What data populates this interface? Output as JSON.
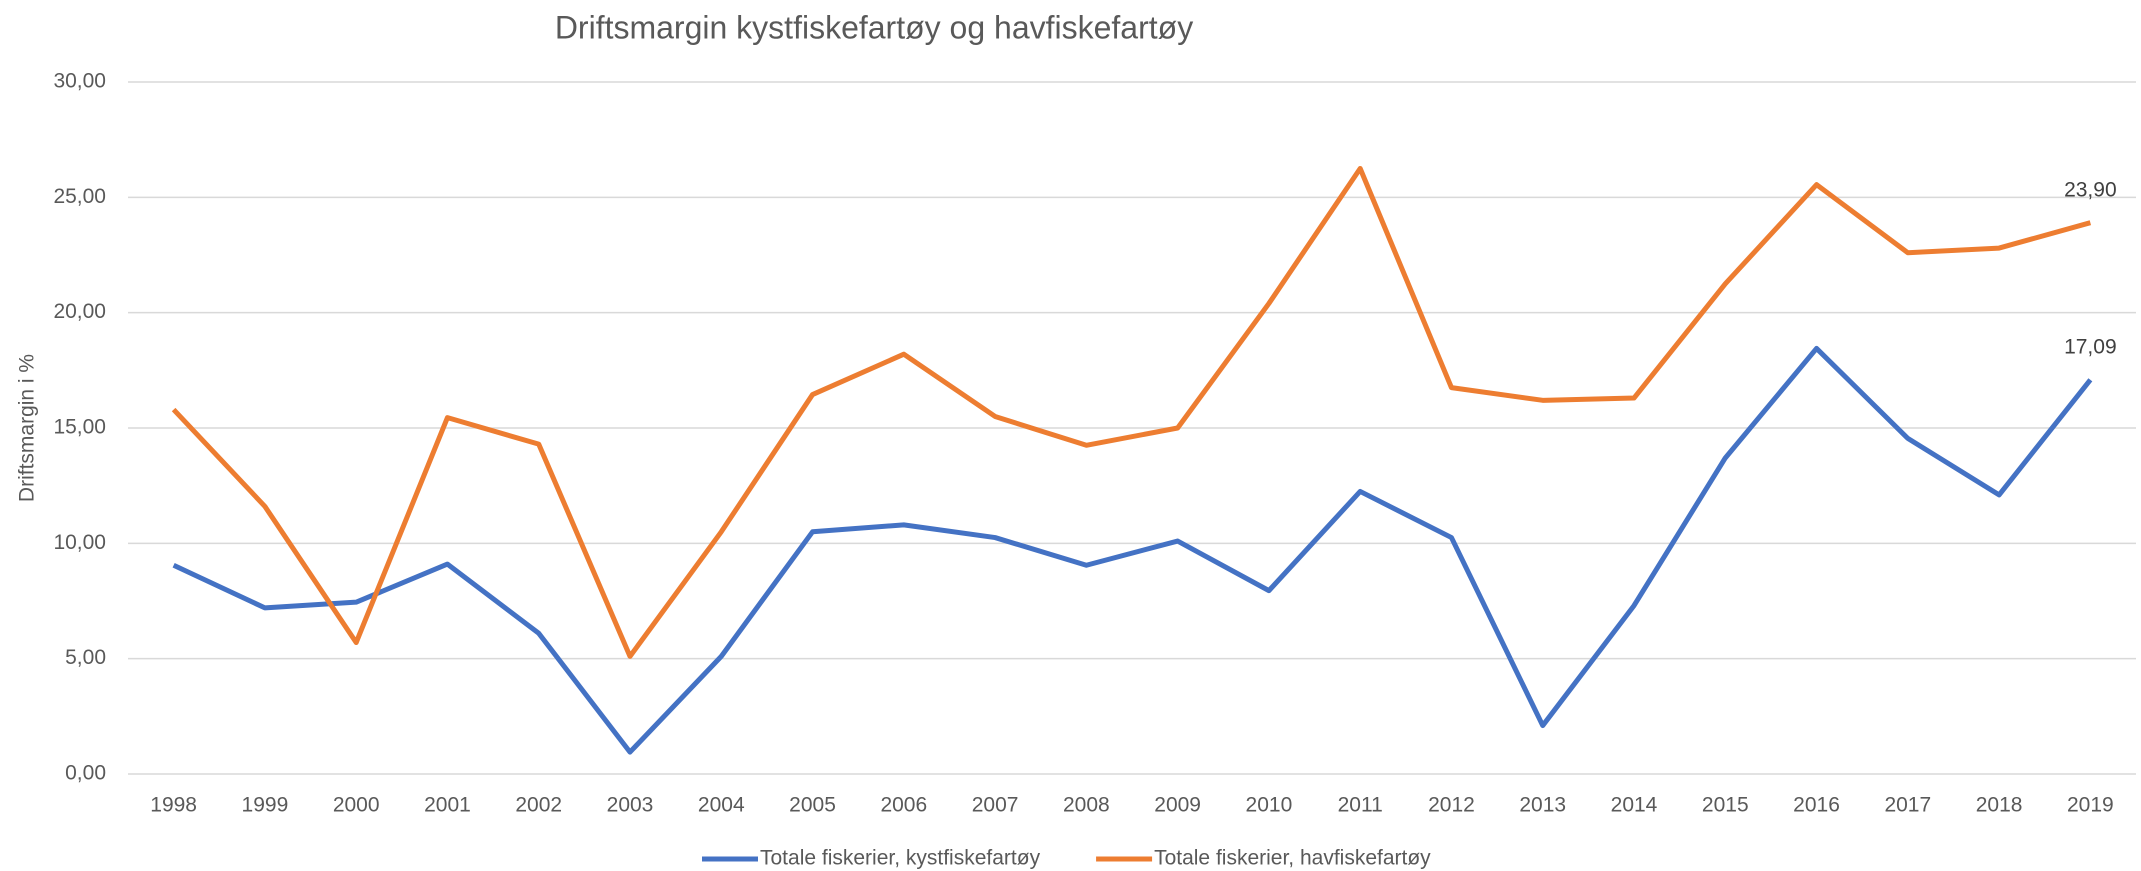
{
  "chart_data": {
    "type": "line",
    "title": "Driftsmargin kystfiskefartøy og havfiskefartøy",
    "y_label": "Driftsmargin i %",
    "categories": [
      "1998",
      "1999",
      "2000",
      "2001",
      "2002",
      "2003",
      "2004",
      "2005",
      "2006",
      "2007",
      "2008",
      "2009",
      "2010",
      "2011",
      "2012",
      "2013",
      "2014",
      "2015",
      "2016",
      "2017",
      "2018",
      "2019"
    ],
    "series": [
      {
        "name": "Totale fiskerier, kystfiskefartøy",
        "color": "#4472c4",
        "values": [
          9.05,
          7.2,
          7.45,
          9.1,
          6.1,
          0.95,
          5.1,
          10.5,
          10.8,
          10.25,
          9.05,
          10.1,
          7.95,
          12.25,
          10.25,
          2.1,
          7.3,
          13.7,
          18.45,
          14.55,
          12.1,
          17.09
        ],
        "value_labels": [
          null,
          null,
          null,
          null,
          null,
          null,
          null,
          null,
          null,
          null,
          null,
          null,
          null,
          null,
          null,
          null,
          null,
          null,
          null,
          null,
          null,
          "17,09"
        ]
      },
      {
        "name": "Totale fiskerier, havfiskefartøy",
        "color": "#ed7d31",
        "values": [
          15.8,
          11.6,
          5.7,
          15.45,
          14.3,
          5.1,
          10.5,
          16.45,
          18.2,
          15.5,
          14.25,
          15.0,
          20.4,
          26.25,
          16.75,
          16.2,
          16.3,
          21.25,
          25.55,
          22.6,
          22.8,
          23.9
        ],
        "value_labels": [
          null,
          null,
          null,
          null,
          null,
          null,
          null,
          null,
          null,
          null,
          null,
          null,
          null,
          null,
          null,
          null,
          null,
          null,
          null,
          null,
          null,
          "23,90"
        ]
      }
    ],
    "ylim": [
      0,
      30
    ],
    "yticks": [
      {
        "value": 0,
        "label": "0,00"
      },
      {
        "value": 5,
        "label": "5,00"
      },
      {
        "value": 10,
        "label": "10,00"
      },
      {
        "value": 15,
        "label": "15,00"
      },
      {
        "value": 20,
        "label": "20,00"
      },
      {
        "value": 25,
        "label": "25,00"
      },
      {
        "value": 30,
        "label": "30,00"
      }
    ],
    "grid": true,
    "legend": "bottom"
  }
}
